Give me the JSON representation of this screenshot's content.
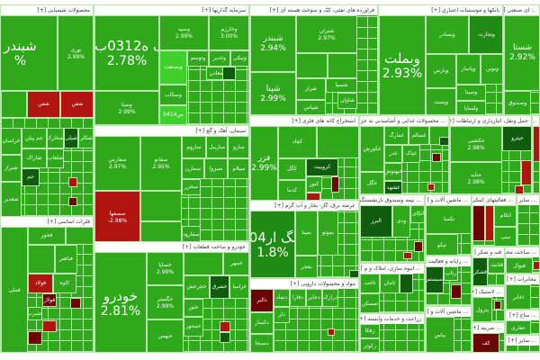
{
  "colors": {
    "up": "#2fa81c",
    "up_bright": "#3fd02b",
    "up_dark": "#0f5c0e",
    "down": "#b0140f",
    "down_dark": "#6a0606"
  },
  "sectors": {
    "chem": {
      "title": "محصولات شیمیایی [+]",
      "tiles": [
        {
          "l": "شبندر",
          "p": "%"
        },
        {
          "l": "نوری",
          "p": "2.99%"
        },
        {
          "l": "شفن"
        },
        {
          "l": "شفن"
        },
        {
          "l": "خراسان"
        },
        {
          "l": "شیراز"
        },
        {
          "l": "شاراک"
        },
        {
          "l": "جم پیلن"
        },
        {
          "l": "شکلر"
        },
        {
          "l": "شپلی"
        },
        {
          "l": "جم"
        },
        {
          "l": "شغدیر"
        },
        {
          "l": "شلعاب"
        },
        {
          "l": "شخارک"
        }
      ]
    },
    "metals": {
      "title": "فلزات اساسی [+]",
      "tiles": [
        {
          "l": "فملی"
        },
        {
          "l": "فخوز"
        },
        {
          "l": "فباهنر"
        },
        {
          "l": "فولاد"
        },
        {
          "l": "کاوه"
        },
        {
          "l": "فولاژ"
        },
        {
          "l": "فسرب"
        }
      ]
    },
    "invest": {
      "title": "سرمایه گذاریها [+]",
      "tiles": [
        {
          "l": "سک ه0312ب01",
          "p": "2.78%"
        },
        {
          "l": "وصنا",
          "p": "2.99%"
        },
        {
          "l": "وسپه",
          "p": "2.99%"
        },
        {
          "l": "وخارزم",
          "p": "3.00%"
        },
        {
          "l": "وبصنعت"
        },
        {
          "l": "وتوسم"
        },
        {
          "l": "وغدیر"
        },
        {
          "l": "ونیکی"
        },
        {
          "l": "وسکاب"
        },
        {
          "l": "ومعادن"
        },
        {
          "l": "0414س"
        }
      ]
    },
    "cement": {
      "title": "سیمان، آهک و گچ [+]",
      "tiles": [
        {
          "l": "سفارس",
          "p": "2.97%"
        },
        {
          "l": "سفانو",
          "p": "2.95%"
        },
        {
          "l": "سصفها",
          "p": "-2.98%"
        },
        {
          "l": "سارو"
        },
        {
          "l": "ساربیل"
        },
        {
          "l": "ساروم"
        },
        {
          "l": "سیلام"
        },
        {
          "l": "سبزوا"
        },
        {
          "l": "سمازن"
        },
        {
          "l": "سخزر"
        },
        {
          "l": "سفارود"
        }
      ]
    },
    "auto": {
      "title": "خودرو و ساخت قطعات [+]",
      "tiles": [
        {
          "l": "خودرو",
          "p": "2.81%"
        },
        {
          "l": "خساپا",
          "p": "2.99%"
        },
        {
          "l": "خگستر",
          "p": "2.99%"
        },
        {
          "l": "خبهمن"
        },
        {
          "l": "خمهر"
        },
        {
          "l": "خچرخش"
        },
        {
          "l": "خشرق"
        },
        {
          "l": "خزامیا"
        },
        {
          "l": "ختور"
        },
        {
          "l": "خمحور"
        }
      ]
    },
    "oil": {
      "title": "فراورده های نفتی، کک و سوخت هسته ای [+]",
      "tiles": [
        {
          "l": "شبندر",
          "p": "2.94%"
        },
        {
          "l": "شپنا",
          "p": "2.99%"
        },
        {
          "l": "شتران",
          "p": "2.97%"
        },
        {
          "l": "شراز"
        },
        {
          "l": "شسپا"
        },
        {
          "l": "شپاس"
        },
        {
          "l": "شاوان"
        }
      ]
    },
    "banks": {
      "title": "بانکها و موسسات اعتباری [+]",
      "tiles": [
        {
          "l": "وبملت",
          "p": "2.93%"
        },
        {
          "l": "وبصادر"
        },
        {
          "l": "وتجارت"
        },
        {
          "l": "وپارس"
        },
        {
          "l": "وپاسار"
        },
        {
          "l": "ونوین"
        },
        {
          "l": "وپست"
        },
        {
          "l": "وسینا"
        },
        {
          "l": "ولساپا"
        }
      ]
    },
    "multi": {
      "title": "... ای صنعتی [+]",
      "tiles": [
        {
          "l": "شستا",
          "p": "2.92%"
        },
        {
          "l": "وصندوق"
        }
      ]
    },
    "mining": {
      "title": "استخراج کانه های فلزی [+]",
      "tiles": [
        {
          "l": "فزر",
          "p": "2.99%"
        },
        {
          "l": "کچاد"
        },
        {
          "l": "کگل"
        },
        {
          "l": "کروییت"
        },
        {
          "l": "کدما"
        },
        {
          "l": "کنور"
        }
      ]
    },
    "food": {
      "title": "... محصولات غذایی و آشامیدنی به جز [+]",
      "tiles": [
        {
          "l": "غکورش"
        },
        {
          "l": "غمارگ"
        },
        {
          "l": "غسالم"
        },
        {
          "l": "غدر"
        },
        {
          "l": "غپاک"
        },
        {
          "l": "غبهنوش"
        },
        {
          "l": "غگل"
        },
        {
          "l": "غشهد"
        }
      ]
    },
    "transport": {
      "title": "حمل ونقل، انبارداری و ارتباطات [+]",
      "tiles": [
        {
          "l": "حکشتی",
          "p": "2.98%"
        },
        {
          "l": "حتاید",
          "p": "2.98%"
        },
        {
          "l": "حپترو"
        }
      ]
    },
    "power": {
      "title": "عرضه برق، گاز، بخار و آب گرم [+]",
      "tiles": [
        {
          "l": "صگ ار04ع",
          "p": "1.8%"
        },
        {
          "l": "بمپنا"
        },
        {
          "l": "بفجر"
        },
        {
          "l": "بموتو"
        }
      ]
    },
    "pharma": {
      "title": "مواد و محصولات دارویی [+]",
      "tiles": [
        {
          "l": "دالبر"
        },
        {
          "l": "دکسار"
        },
        {
          "l": "دتماد"
        },
        {
          "l": "دفارا"
        },
        {
          "l": "دلر"
        },
        {
          "l": "دجابر"
        },
        {
          "l": "درازک"
        },
        {
          "l": "دسبحا"
        }
      ]
    },
    "insurance": {
      "title": "... بیمه وصندوق بازنشستگی [+]",
      "tiles": [
        {
          "l": "البرز"
        },
        {
          "l": "ودی"
        },
        {
          "l": "اتکای"
        }
      ]
    },
    "machinery": {
      "title": "... ماشین آلات و [+]",
      "tiles": [
        {
          "l": "تکمبا"
        },
        {
          "l": "تپکو"
        }
      ]
    },
    "support": {
      "title": "... فعالیتهای کمکی [+]",
      "tiles": [
        {
          "l": "اتکام"
        },
        {
          "l": "سپ"
        }
      ]
    },
    "misc1": {
      "title": "... [+]"
    },
    "realestate": {
      "title": "... انبوه سازی، املاک و م [+]",
      "tiles": [
        {
          "l": "ثاخت"
        },
        {
          "l": "ثامان"
        },
        {
          "l": "ثمسکن"
        }
      ]
    },
    "computer": {
      "title": "... رایانه و فعالیت [+]",
      "tiles": [
        {
          "l": "سیستم"
        },
        {
          "l": "رتاپ"
        }
      ]
    },
    "agri": {
      "title": "زراعت و خدمات وابسته [+]",
      "tiles": [
        {
          "l": "زفکا"
        },
        {
          "l": "زکوثر"
        }
      ]
    },
    "machinery2": {
      "title": "... ماشین آلات و [+]",
      "tiles": [
        {
          "l": "بپاس"
        }
      ]
    },
    "sugar": {
      "title": "قند و شکر [+]",
      "tiles": [
        {
          "l": "قشکر"
        },
        {
          "l": "قثابت"
        }
      ]
    },
    "metalprod": {
      "title": "... ساخت محصولات فلزی [+]",
      "tiles": [
        {
          "l": "فنوال"
        }
      ]
    },
    "tire": {
      "title": "... لاستیک [+]",
      "tiles": [
        {
          "l": "پترول"
        }
      ]
    },
    "telecom": {
      "title": "مخابرات [+]",
      "tiles": [
        {
          "l": "اخابر"
        }
      ]
    },
    "tourism": {
      "title": "... ساخ [+]",
      "tiles": [
        {
          "l": "حفاری"
        }
      ]
    },
    "hotel": {
      "title": "... ضریبه [+]",
      "tiles": [
        {
          "l": "کف"
        }
      ]
    },
    "other": {
      "title": "... سایر [+]"
    }
  }
}
